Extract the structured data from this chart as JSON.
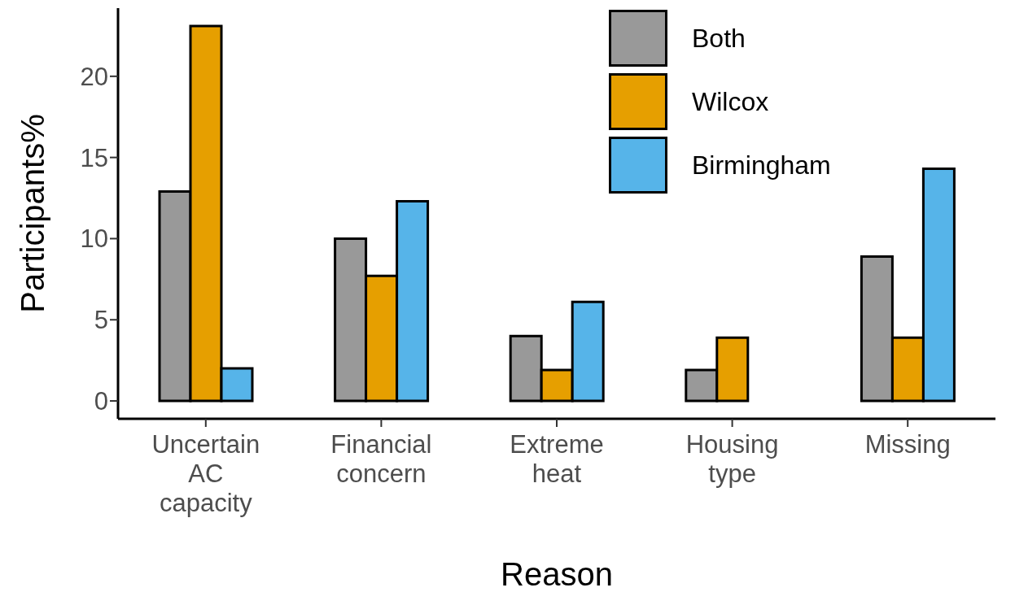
{
  "chart_data": {
    "type": "bar",
    "xlabel": "Reason",
    "ylabel": "Participants%",
    "categories": [
      "Uncertain\nAC\ncapacity",
      "Financial\nconcern",
      "Extreme\nheat",
      "Housing\ntype",
      "Missing"
    ],
    "series": [
      {
        "name": "Both",
        "color": "#999999",
        "values": [
          12.9,
          10,
          4,
          1.9,
          8.9
        ]
      },
      {
        "name": "Wilcox",
        "color": "#e69f00",
        "values": [
          23.1,
          7.7,
          1.9,
          3.9,
          3.9
        ]
      },
      {
        "name": "Birmingham",
        "color": "#56b4e9",
        "values": [
          2,
          12.3,
          6.1,
          0,
          14.3
        ]
      }
    ],
    "ylim": [
      -1.1,
      24.2
    ],
    "yticks": [
      0,
      5,
      10,
      15,
      20
    ],
    "grid": false,
    "legend": "top right"
  }
}
